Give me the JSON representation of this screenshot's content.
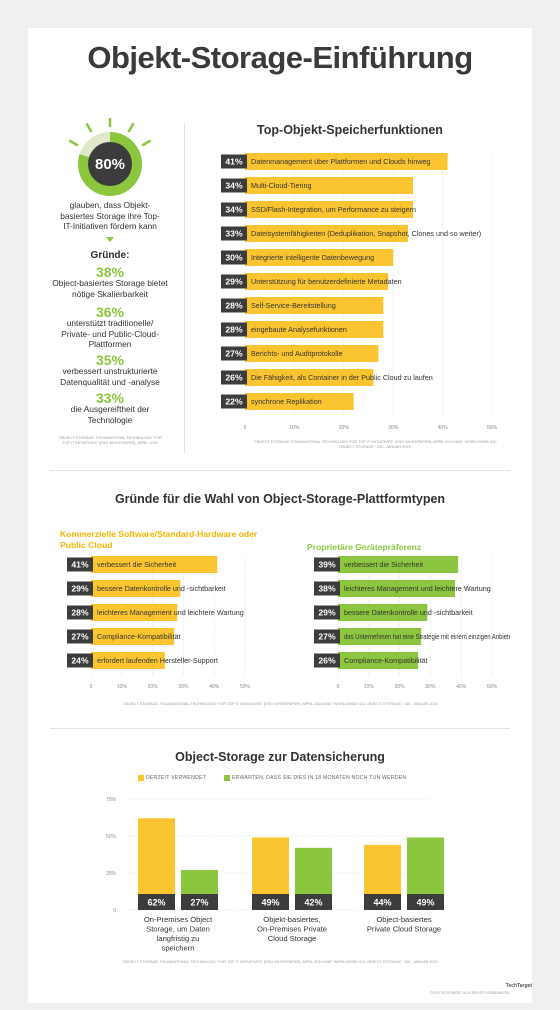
{
  "title": "Objekt-Storage-Einführung",
  "left_panel": {
    "stat_value": "80%",
    "stat_fraction": 0.8,
    "stat_text": "glauben, dass Objekt-basiertes Storage ihre Top-IT-Initiativen fördern kann",
    "reasons_heading": "Gründe:",
    "reasons": [
      {
        "value": "38%",
        "text": "Object-basiertes Storage bietet nötige Skalierbarkeit"
      },
      {
        "value": "36%",
        "text": "unterstützt traditionelle/ Private- und Public-Cloud-Plattformen"
      },
      {
        "value": "35%",
        "text": "verbessert unstrukturierte Datenqualität und -analyse"
      },
      {
        "value": "33%",
        "text": "die Ausgereiftheit der Technologie"
      }
    ],
    "source": "\"Object storage: foundational technology for top IT initiatives\" (ESG whitepaper), April 2019"
  },
  "colors": {
    "yellow": "#fbc531",
    "green": "#8cc63f",
    "dark": "#3c3c3c",
    "ring_light": "#dfe8c9"
  },
  "chart_data": [
    {
      "type": "bar",
      "orientation": "horizontal",
      "title": "Top-Objekt-Speicherfunktionen",
      "categories": [
        "Datenmanagement über Plattformen und Clouds hinweg",
        "Multi-Cloud-Tiering",
        "SSD/Flash-Integration, um Performance zu steigern",
        "Dateisystemfähigkeiten (Deduplikation, Snapshot, Clones und so weiter)",
        "Integrierte intelligente Datenbewegung",
        "Unterstützung für benutzerdefinierte Metadaten",
        "Self-Service-Bereitstellung",
        "eingebaute Analysefunktionen",
        "Berichts- und Auditprotokolle",
        "Die Fähigkeit, als Container in der Public Cloud zu laufen",
        "synchrone Replikation"
      ],
      "values": [
        41,
        34,
        34,
        33,
        30,
        29,
        28,
        28,
        27,
        26,
        22
      ],
      "labels": [
        "41%",
        "34%",
        "34%",
        "33%",
        "30%",
        "29%",
        "28%",
        "28%",
        "27%",
        "26%",
        "22%"
      ],
      "xlim": [
        0,
        50
      ],
      "xticks": [
        "0",
        "10%",
        "20%",
        "30%",
        "40%",
        "50%"
      ],
      "source": "\"Object storage: foundational technology for top IT initiatives\" (ESG whitepaper), April 2019 and \"Worldwide IDC object storage,\" IDC, Januar 2019"
    },
    {
      "type": "bar",
      "orientation": "horizontal",
      "title": "Gründe für die Wahl von Object-Storage-Plattformtypen",
      "subtitle": "Kommerzielle Software/Standard-Hardware oder Public Cloud",
      "categories": [
        "verbessert die Sicherheit",
        "bessere Datenkontrolle und -sichtbarkeit",
        "leichteres Management und leichtere Wartung",
        "Compliance-Kompatibilität",
        "erfordert laufenden Hersteller-Support"
      ],
      "values": [
        41,
        29,
        28,
        27,
        24
      ],
      "labels": [
        "41%",
        "29%",
        "28%",
        "27%",
        "24%"
      ],
      "xlim": [
        0,
        50
      ],
      "xticks": [
        "0",
        "10%",
        "20%",
        "30%",
        "40%",
        "50%"
      ]
    },
    {
      "type": "bar",
      "orientation": "horizontal",
      "subtitle": "Proprietäre Gerätepräferenz",
      "categories": [
        "verbessert die Sicherheit",
        "leichteres Management und leichtere Wartung",
        "bessere Datenkontrolle und -sichtbarkeit",
        "das Unternehmen hat eine Strategie mit einem einzigen Anbieter",
        "Compliance-Kompatibilität"
      ],
      "values": [
        39,
        38,
        29,
        27,
        26
      ],
      "labels": [
        "39%",
        "38%",
        "29%",
        "27%",
        "26%"
      ],
      "xlim": [
        0,
        50
      ],
      "xticks": [
        "0",
        "10%",
        "20%",
        "30%",
        "40%",
        "50%"
      ],
      "source": "\"Object storage: foundational technology for top IT initiatives\" (ESG whitepaper), April 2019 and \"Worldwide IDC object storage,\" IDC, Januar 2019"
    },
    {
      "type": "bar",
      "orientation": "vertical",
      "title": "Object-Storage zur Datensicherung",
      "categories": [
        "On-Premises Object Storage, um Daten langfristig zu speichern",
        "Objekt-basiertes, On-Premises Private Cloud Storage",
        "Object-basiertes Private Cloud Storage"
      ],
      "series": [
        {
          "name": "derzeit verwendet",
          "values": [
            62,
            49,
            44
          ],
          "labels": [
            "62%",
            "49%",
            "44%"
          ]
        },
        {
          "name": "erwarten, dass sie dies in 18 Monaten noch tun werden",
          "values": [
            27,
            42,
            49
          ],
          "labels": [
            "27%",
            "42%",
            "49%"
          ]
        }
      ],
      "ylim": [
        0,
        75
      ],
      "yticks": [
        "0",
        "25%",
        "50%",
        "75%"
      ],
      "legend": "top",
      "source": "\"Object storage: foundational technology for top IT initiatives\" (ESG whitepaper), April 2019 and \"Worldwide IDC object storage,\" IDC, Januar 2019"
    }
  ],
  "footer": {
    "copyright": "©2019 TechTarget. Alle Rechte vorbehalten.",
    "brand": "TechTarget"
  }
}
